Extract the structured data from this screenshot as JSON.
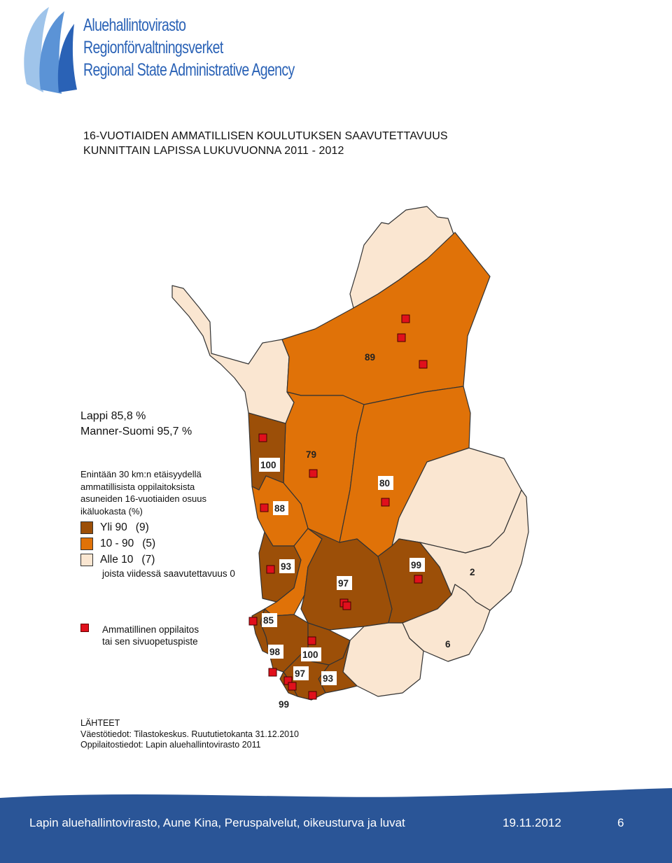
{
  "agency": {
    "line1": "Aluehallintovirasto",
    "line2": "Regionförvaltningsverket",
    "line3": "Regional State Administrative Agency"
  },
  "title": {
    "line1": "16-VUOTIAIDEN AMMATILLISEN KOULUTUKSEN SAAVUTETTAVUUS",
    "line2": "KUNNITTAIN LAPISSA LUKUVUONNA 2011 - 2012"
  },
  "stats": {
    "lappi": "Lappi 85,8 %",
    "manner": "Manner-Suomi 95,7 %"
  },
  "legend": {
    "description": [
      "Enintään 30 km:n etäisyydellä",
      "ammatillisista oppilaitoksista",
      "asuneiden 16-vuotiaiden osuus",
      "ikäluokasta (%)"
    ],
    "classes": [
      {
        "label": "Yli 90",
        "count": "(9)",
        "color": "#9c4f08"
      },
      {
        "label": "10 - 90",
        "count": "(5)",
        "color": "#e07208"
      },
      {
        "label": "Alle 10",
        "count": "(7)",
        "color": "#fae6d1"
      }
    ],
    "zero_note": "joista viidessä saavutettavuus 0",
    "school_line1": "Ammatillinen oppilaitos",
    "school_line2": "tai sen sivuopetuspiste"
  },
  "map_values": [
    "89",
    "79",
    "100",
    "88",
    "80",
    "93",
    "97",
    "99",
    "2",
    "85",
    "6",
    "98",
    "100",
    "97",
    "93",
    "99"
  ],
  "sources": {
    "heading": "LÄHTEET",
    "line1": "Väestötiedot: Tilastokeskus. Ruututietokanta 31.12.2010",
    "line2": "Oppilaitostiedot: Lapin aluehallintovirasto 2011"
  },
  "footer": {
    "text": "Lapin aluehallintovirasto, Aune Kina, Peruspalvelut, oikeusturva ja luvat",
    "date": "19.11.2012",
    "page": "6",
    "color": "#2a5597"
  }
}
